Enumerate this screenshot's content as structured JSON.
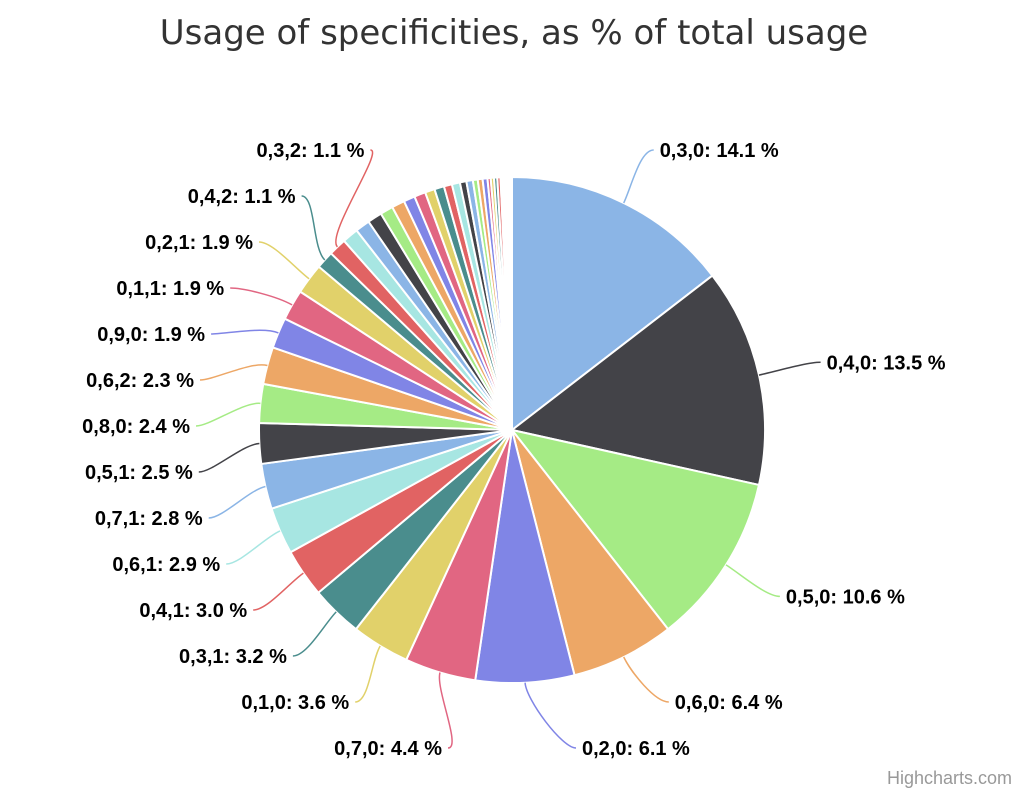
{
  "chart_data": {
    "type": "pie",
    "title": "Usage of specificities, as % of total usage",
    "credits": "Highcharts.com",
    "label_suffix": " %",
    "slices": [
      {
        "name": "0,3,0",
        "value": 14.1,
        "color": "#8bb5e6",
        "labeled": true
      },
      {
        "name": "0,4,0",
        "value": 13.5,
        "color": "#434348",
        "labeled": true
      },
      {
        "name": "0,5,0",
        "value": 10.6,
        "color": "#a5eb85",
        "labeled": true
      },
      {
        "name": "0,6,0",
        "value": 6.4,
        "color": "#eda766",
        "labeled": true
      },
      {
        "name": "0,2,0",
        "value": 6.1,
        "color": "#8085e6",
        "labeled": true
      },
      {
        "name": "0,7,0",
        "value": 4.4,
        "color": "#e16682",
        "labeled": true
      },
      {
        "name": "0,1,0",
        "value": 3.6,
        "color": "#e1d16a",
        "labeled": true
      },
      {
        "name": "0,3,1",
        "value": 3.2,
        "color": "#4a8d8d",
        "labeled": true
      },
      {
        "name": "0,4,1",
        "value": 3.0,
        "color": "#e16363",
        "labeled": true
      },
      {
        "name": "0,6,1",
        "value": 2.9,
        "color": "#a7e6e2",
        "labeled": true
      },
      {
        "name": "0,7,1",
        "value": 2.8,
        "color": "#8bb5e6",
        "labeled": true
      },
      {
        "name": "0,5,1",
        "value": 2.5,
        "color": "#434348",
        "labeled": true
      },
      {
        "name": "0,8,0",
        "value": 2.4,
        "color": "#a5eb85",
        "labeled": true
      },
      {
        "name": "0,6,2",
        "value": 2.3,
        "color": "#eda766",
        "labeled": true
      },
      {
        "name": "0,9,0",
        "value": 1.9,
        "color": "#8085e6",
        "labeled": true
      },
      {
        "name": "0,1,1",
        "value": 1.9,
        "color": "#e16682",
        "labeled": true
      },
      {
        "name": "0,2,1",
        "value": 1.9,
        "color": "#e1d16a",
        "labeled": true
      },
      {
        "name": "0,4,2",
        "value": 1.1,
        "color": "#4a8d8d",
        "labeled": true
      },
      {
        "name": "0,3,2",
        "value": 1.1,
        "color": "#e16363",
        "labeled": true
      },
      {
        "value": 1.0,
        "color": "#a7e6e2",
        "labeled": false
      },
      {
        "value": 0.9,
        "color": "#8bb5e6",
        "labeled": false
      },
      {
        "value": 0.9,
        "color": "#434348",
        "labeled": false
      },
      {
        "value": 0.8,
        "color": "#a5eb85",
        "labeled": false
      },
      {
        "value": 0.8,
        "color": "#eda766",
        "labeled": false
      },
      {
        "value": 0.7,
        "color": "#8085e6",
        "labeled": false
      },
      {
        "value": 0.7,
        "color": "#e16682",
        "labeled": false
      },
      {
        "value": 0.6,
        "color": "#e1d16a",
        "labeled": false
      },
      {
        "value": 0.6,
        "color": "#4a8d8d",
        "labeled": false
      },
      {
        "value": 0.5,
        "color": "#e16363",
        "labeled": false
      },
      {
        "value": 0.5,
        "color": "#a7e6e2",
        "labeled": false
      },
      {
        "value": 0.4,
        "color": "#434348",
        "labeled": false
      },
      {
        "value": 0.4,
        "color": "#8bb5e6",
        "labeled": false
      },
      {
        "value": 0.3,
        "color": "#a5eb85",
        "labeled": false
      },
      {
        "value": 0.3,
        "color": "#eda766",
        "labeled": false
      },
      {
        "value": 0.3,
        "color": "#8085e6",
        "labeled": false
      },
      {
        "value": 0.2,
        "color": "#e16682",
        "labeled": false
      },
      {
        "value": 0.2,
        "color": "#e1d16a",
        "labeled": false
      },
      {
        "value": 0.2,
        "color": "#4a8d8d",
        "labeled": false
      },
      {
        "value": 0.2,
        "color": "#e16363",
        "labeled": false
      },
      {
        "value": 0.1,
        "color": "#a7e6e2",
        "labeled": false
      },
      {
        "value": 0.1,
        "color": "#8bb5e6",
        "labeled": false
      },
      {
        "value": 0.1,
        "color": "#434348",
        "labeled": false
      },
      {
        "value": 0.1,
        "color": "#a5eb85",
        "labeled": false
      },
      {
        "value": 0.1,
        "color": "#eda766",
        "labeled": false
      },
      {
        "value": 0.1,
        "color": "#8085e6",
        "labeled": false
      },
      {
        "value": 0.1,
        "color": "#e16682",
        "labeled": false
      }
    ]
  }
}
